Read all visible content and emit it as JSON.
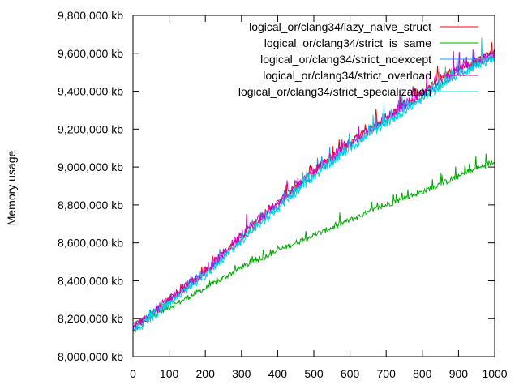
{
  "chart_data": {
    "type": "line",
    "title": "",
    "xlabel": "",
    "ylabel": "Memory usage",
    "xlim": [
      0,
      1000
    ],
    "ylim": [
      8000000,
      9800000
    ],
    "x_ticks": [
      0,
      100,
      200,
      300,
      400,
      500,
      600,
      700,
      800,
      900,
      1000
    ],
    "x_tick_labels": [
      "0",
      "100",
      "200",
      "300",
      "400",
      "500",
      "600",
      "700",
      "800",
      "900",
      "1000"
    ],
    "y_ticks": [
      8000000,
      8200000,
      8400000,
      8600000,
      8800000,
      9000000,
      9200000,
      9400000,
      9600000,
      9800000
    ],
    "y_tick_labels": [
      "8,000,000 kb",
      "8,200,000 kb",
      "8,400,000 kb",
      "8,600,000 kb",
      "8,800,000 kb",
      "9,000,000 kb",
      "9,200,000 kb",
      "9,400,000 kb",
      "9,600,000 kb",
      "9,800,000 kb"
    ],
    "grid": false,
    "legend_position": "top-right",
    "series": [
      {
        "name": "logical_or/clang34/lazy_naive_struct",
        "color": "#ff0000",
        "x": [
          0,
          100,
          200,
          300,
          400,
          500,
          600,
          700,
          800,
          850,
          900,
          950,
          1000
        ],
        "y": [
          8150000,
          8300000,
          8450000,
          8640000,
          8810000,
          8980000,
          9130000,
          9260000,
          9390000,
          9480000,
          9520000,
          9560000,
          9610000
        ]
      },
      {
        "name": "logical_or/clang34/strict_is_same",
        "color": "#00aa00",
        "x": [
          0,
          100,
          200,
          300,
          400,
          500,
          600,
          700,
          800,
          900,
          1000
        ],
        "y": [
          8170000,
          8260000,
          8360000,
          8470000,
          8560000,
          8640000,
          8720000,
          8800000,
          8870000,
          8950000,
          9030000
        ]
      },
      {
        "name": "logical_or/clang34/strict_noexcept",
        "color": "#1e90ff",
        "x": [
          0,
          100,
          200,
          300,
          400,
          500,
          600,
          700,
          800,
          900,
          1000
        ],
        "y": [
          8140000,
          8290000,
          8440000,
          8620000,
          8790000,
          8960000,
          9110000,
          9240000,
          9370000,
          9500000,
          9590000
        ]
      },
      {
        "name": "logical_or/clang34/strict_overload",
        "color": "#cc00cc",
        "x": [
          0,
          100,
          200,
          300,
          400,
          500,
          600,
          700,
          800,
          900,
          1000
        ],
        "y": [
          8150000,
          8300000,
          8450000,
          8640000,
          8810000,
          8980000,
          9130000,
          9260000,
          9390000,
          9510000,
          9600000
        ]
      },
      {
        "name": "logical_or/clang34/strict_specialization",
        "color": "#00d8d8",
        "x": [
          0,
          100,
          200,
          300,
          400,
          500,
          600,
          700,
          800,
          900,
          1000
        ],
        "y": [
          8130000,
          8280000,
          8430000,
          8610000,
          8780000,
          8950000,
          9100000,
          9230000,
          9360000,
          9490000,
          9580000
        ]
      }
    ]
  }
}
